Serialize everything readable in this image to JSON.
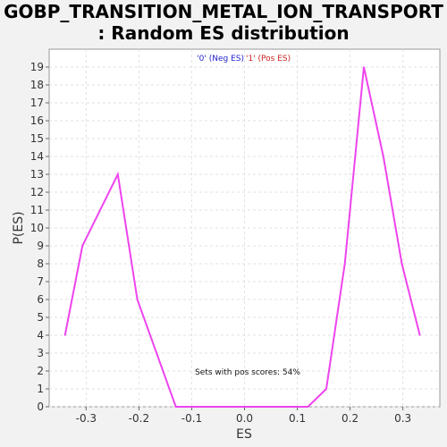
{
  "chart_data": {
    "type": "line",
    "title_lines": [
      "GOBP_TRANSITION_METAL_ION_TRANSPORT",
      ": Random ES distribution"
    ],
    "xlabel": "ES",
    "ylabel": "P(ES)",
    "xlim": [
      -0.37,
      0.37
    ],
    "ylim": [
      0,
      20
    ],
    "x_ticks": [
      -0.3,
      -0.2,
      -0.1,
      0.0,
      0.1,
      0.2,
      0.3
    ],
    "x_tick_labels": [
      "-0.3",
      "-0.2",
      "-0.1",
      "0.0",
      "0.1",
      "0.2",
      "0.3"
    ],
    "y_ticks": [
      0,
      1,
      2,
      3,
      4,
      5,
      6,
      7,
      8,
      9,
      10,
      11,
      12,
      13,
      14,
      15,
      16,
      17,
      18,
      19
    ],
    "grid": true,
    "legend": [
      {
        "label": "'0' (Neg ES)",
        "color": "#2222cc"
      },
      {
        "label": "'1' (Pos ES)",
        "color": "#cc2222"
      }
    ],
    "legend_position": "top-center",
    "series": [
      {
        "color": "#ee44ee",
        "x": [
          -0.34,
          -0.307,
          -0.24,
          -0.203,
          -0.13,
          0.12,
          0.155,
          0.19,
          0.226,
          0.263,
          0.298,
          0.332
        ],
        "y": [
          4,
          9,
          13,
          6,
          0,
          0,
          1,
          8,
          19,
          14,
          8,
          4
        ]
      }
    ],
    "annotation": "Sets with pos scores: 54%"
  }
}
